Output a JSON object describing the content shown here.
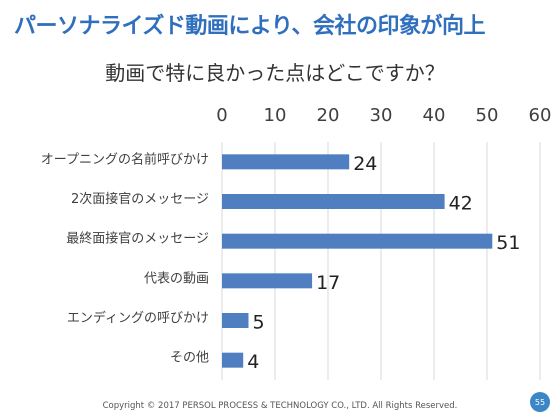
{
  "slide": {
    "title": "パーソナライズド動画により、会社の印象が向上",
    "footer": "Copyright © 2017 PERSOL PROCESS & TECHNOLOGY CO., LTD.  All Rights Reserved.",
    "page_number": "55"
  },
  "colors": {
    "bar": "#4f7fc1",
    "title": "#2f6fbd",
    "gridline": "#d9d9d9",
    "badge": "#3b86c6"
  },
  "chart_data": {
    "type": "bar",
    "orientation": "horizontal",
    "title": "動画で特に良かった点はどこですか？",
    "categories": [
      "オープニングの名前呼びかけ",
      "2次面接官のメッセージ",
      "最終面接官のメッセージ",
      "代表の動画",
      "エンディングの呼びかけ",
      "その他"
    ],
    "values": [
      24,
      42,
      51,
      17,
      5,
      4
    ],
    "xlim": [
      0,
      60
    ],
    "xticks": [
      0,
      10,
      20,
      30,
      40,
      50,
      60
    ],
    "axis_position": "top",
    "grid": true,
    "data_labels": true
  }
}
